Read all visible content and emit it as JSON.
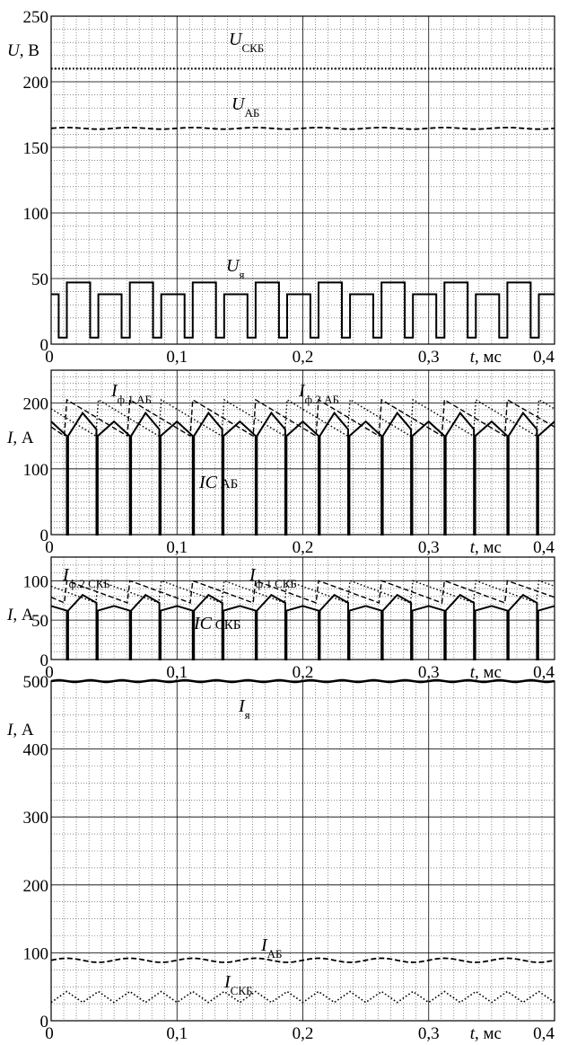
{
  "chart_data": [
    {
      "type": "line",
      "ylabel": "U, В",
      "xlabel": "t, мс",
      "xlim": [
        0,
        0.4
      ],
      "ylim": [
        0,
        250
      ],
      "y_ticks": [
        "0",
        "50",
        "100",
        "150",
        "200",
        "250"
      ],
      "x_ticks": [
        "0",
        "0,1",
        "0,2",
        "0,3",
        "0,4"
      ],
      "grid": true,
      "series": [
        {
          "name": "U_СКБ",
          "label_main": "U",
          "label_sub": "СКБ",
          "style": "dotted",
          "values": [
            210,
            210
          ]
        },
        {
          "name": "U_АБ",
          "label_main": "U",
          "label_sub": "АБ",
          "style": "dashed",
          "values": [
            164,
            165,
            164
          ]
        },
        {
          "name": "U_я",
          "label_main": "U",
          "label_sub": "я",
          "style": "solid",
          "pwm_levels": [
            5,
            38,
            47
          ]
        }
      ]
    },
    {
      "type": "line",
      "ylabel": "I, А",
      "xlabel": "t, мс",
      "xlim": [
        0,
        0.4
      ],
      "ylim": [
        0,
        250
      ],
      "y_ticks": [
        "0",
        "100",
        "200"
      ],
      "x_ticks": [
        "0",
        "0,1",
        "0,2",
        "0,3",
        "0,4"
      ],
      "grid": true,
      "series": [
        {
          "name": "I_ф.1 АБ",
          "label_main": "I",
          "label_sub": "ф.1 АБ",
          "style": "dashed",
          "range": [
            150,
            205
          ]
        },
        {
          "name": "I_ф.2 АБ",
          "label_main": "I",
          "label_sub": "ф.2 АБ",
          "style": "dotted",
          "range": [
            150,
            205
          ]
        },
        {
          "name": "I_C АБ",
          "label_main": "I",
          "label_sub": "C АБ",
          "style": "solid",
          "range": [
            0,
            185
          ]
        }
      ]
    },
    {
      "type": "line",
      "ylabel": "I, А",
      "xlabel": "t, мс",
      "xlim": [
        0,
        0.4
      ],
      "ylim": [
        0,
        130
      ],
      "y_ticks": [
        "0",
        "50",
        "100"
      ],
      "x_ticks": [
        "0",
        "0,1",
        "0,2",
        "0,3",
        "0,4"
      ],
      "grid": true,
      "series": [
        {
          "name": "I_ф.2 СКБ",
          "label_main": "I",
          "label_sub": "ф.2 СКБ",
          "style": "dotted",
          "range": [
            72,
            100
          ]
        },
        {
          "name": "I_ф.1 СКБ",
          "label_main": "I",
          "label_sub": "ф.1 СКБ",
          "style": "dashed",
          "range": [
            72,
            100
          ]
        },
        {
          "name": "I_C СКБ",
          "label_main": "I",
          "label_sub": "C СКБ",
          "style": "solid",
          "range": [
            0,
            82
          ]
        }
      ]
    },
    {
      "type": "line",
      "ylabel": "I, А",
      "xlabel": "t, мс",
      "xlim": [
        0,
        0.4
      ],
      "ylim": [
        0,
        500
      ],
      "y_ticks": [
        "0",
        "100",
        "200",
        "300",
        "400",
        "500"
      ],
      "x_ticks": [
        "0",
        "0,1",
        "0,2",
        "0,3",
        "0,4"
      ],
      "grid": true,
      "series": [
        {
          "name": "I_я",
          "label_main": "I",
          "label_sub": "я",
          "style": "solid",
          "range": [
            497,
            502
          ]
        },
        {
          "name": "I_АБ",
          "label_main": "I",
          "label_sub": "АБ",
          "style": "dashed",
          "range": [
            86,
            93
          ]
        },
        {
          "name": "I_СКБ",
          "label_main": "I",
          "label_sub": "СКБ",
          "style": "dotted",
          "range": [
            27,
            43
          ]
        }
      ]
    }
  ]
}
